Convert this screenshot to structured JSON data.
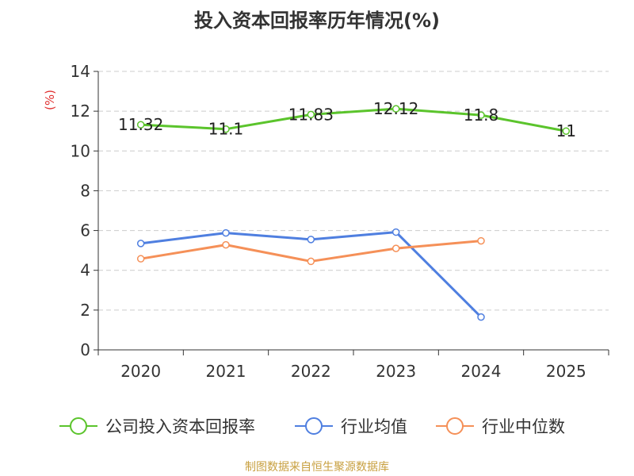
{
  "chart_data": {
    "type": "line",
    "title": "投入资本回报率历年情况(%)",
    "ylabel": "(%)",
    "xlabel": "",
    "categories": [
      "2020",
      "2021",
      "2022",
      "2023",
      "2024",
      "2025"
    ],
    "ylim": [
      0,
      14
    ],
    "yticks": [
      0,
      2,
      4,
      6,
      8,
      10,
      12,
      14
    ],
    "grid": true,
    "legend_position": "bottom",
    "series": [
      {
        "name": "公司投入资本回报率",
        "color": "#5bc42c",
        "values": [
          11.32,
          11.1,
          11.83,
          12.12,
          11.8,
          11
        ],
        "labels": [
          "11.32",
          "11.1",
          "11.83",
          "12.12",
          "11.8",
          "11"
        ]
      },
      {
        "name": "行业均值",
        "color": "#4f7fe0",
        "values": [
          5.35,
          5.88,
          5.55,
          5.92,
          1.65,
          null
        ]
      },
      {
        "name": "行业中位数",
        "color": "#f59058",
        "values": [
          4.58,
          5.28,
          4.45,
          5.1,
          5.48,
          null
        ]
      }
    ]
  },
  "footer": {
    "source": "制图数据来自恒生聚源数据库"
  }
}
